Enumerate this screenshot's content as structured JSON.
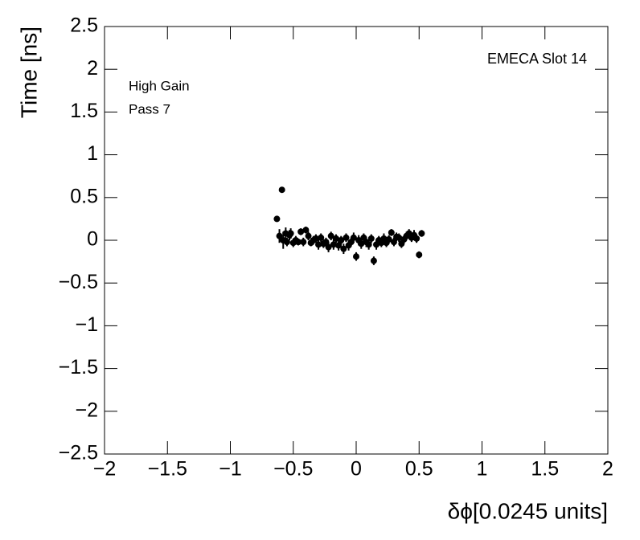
{
  "chart_data": {
    "type": "scatter",
    "title": "EMECA Slot 14",
    "annotations": [
      "High Gain",
      "Pass 7"
    ],
    "x_label": "δϕ[0.0245 units]",
    "y_label": "Time [ns]",
    "color": "#000000",
    "xlim": [
      -2,
      2
    ],
    "ylim": [
      -2.5,
      2.5
    ],
    "xticks": [
      {
        "value": -2,
        "label": "−2"
      },
      {
        "value": -1.5,
        "label": "−1.5"
      },
      {
        "value": -1,
        "label": "−1"
      },
      {
        "value": -0.5,
        "label": "−0.5"
      },
      0,
      0.5,
      1,
      1.5,
      2
    ],
    "yticks": [
      {
        "value": -2.5,
        "label": "−2.5"
      },
      {
        "value": -2,
        "label": "−2"
      },
      {
        "value": -1.5,
        "label": "−1.5"
      },
      {
        "value": -1,
        "label": "−1"
      },
      {
        "value": -0.5,
        "label": "−0.5"
      },
      0,
      0.5,
      1,
      1.5,
      2,
      2.5
    ],
    "x": [
      -0.63,
      -0.61,
      -0.59,
      -0.58,
      -0.56,
      -0.55,
      -0.53,
      -0.52,
      -0.5,
      -0.48,
      -0.46,
      -0.44,
      -0.42,
      -0.4,
      -0.38,
      -0.36,
      -0.34,
      -0.32,
      -0.3,
      -0.28,
      -0.26,
      -0.24,
      -0.22,
      -0.2,
      -0.18,
      -0.16,
      -0.14,
      -0.12,
      -0.1,
      -0.08,
      -0.06,
      -0.04,
      -0.02,
      0.0,
      0.02,
      0.04,
      0.06,
      0.08,
      0.1,
      0.12,
      0.14,
      0.16,
      0.18,
      0.2,
      0.22,
      0.24,
      0.26,
      0.28,
      0.3,
      0.32,
      0.34,
      0.36,
      0.38,
      0.4,
      0.42,
      0.44,
      0.46,
      0.48,
      0.5,
      0.52
    ],
    "values": [
      0.25,
      0.05,
      0.59,
      0.0,
      0.08,
      -0.02,
      0.06,
      0.08,
      -0.03,
      0.0,
      -0.02,
      0.1,
      -0.02,
      0.12,
      0.05,
      -0.03,
      0.0,
      0.02,
      -0.05,
      0.03,
      -0.04,
      -0.02,
      -0.08,
      0.05,
      -0.05,
      0.02,
      -0.06,
      0.0,
      -0.1,
      0.03,
      -0.06,
      -0.02,
      0.03,
      -0.19,
      0.0,
      -0.04,
      0.03,
      -0.02,
      -0.05,
      0.02,
      -0.24,
      -0.05,
      0.0,
      -0.03,
      0.02,
      -0.03,
      0.01,
      0.09,
      -0.02,
      0.04,
      0.03,
      -0.04,
      0.01,
      0.05,
      0.08,
      0.03,
      0.06,
      0.02,
      -0.17,
      0.08
    ],
    "errors": [
      0.02,
      0.08,
      0.02,
      0.1,
      0.07,
      0.05,
      0.06,
      0.06,
      0.05,
      0.05,
      0.04,
      0.04,
      0.05,
      0.04,
      0.05,
      0.04,
      0.05,
      0.05,
      0.06,
      0.05,
      0.05,
      0.05,
      0.06,
      0.05,
      0.06,
      0.05,
      0.06,
      0.05,
      0.06,
      0.05,
      0.06,
      0.05,
      0.06,
      0.05,
      0.06,
      0.06,
      0.05,
      0.06,
      0.06,
      0.05,
      0.05,
      0.06,
      0.05,
      0.05,
      0.06,
      0.05,
      0.05,
      0.04,
      0.05,
      0.05,
      0.05,
      0.05,
      0.05,
      0.05,
      0.05,
      0.05,
      0.06,
      0.05,
      0.04,
      0.04
    ]
  }
}
